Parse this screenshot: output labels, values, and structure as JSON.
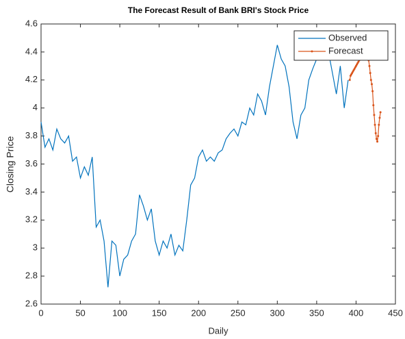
{
  "chart_data": {
    "type": "line",
    "title": "The Forecast Result of Bank BRI's Stock Price",
    "x_label": "Daily",
    "y_label": "Closing Price",
    "xlim": [
      0,
      450
    ],
    "xticks": [
      0,
      50,
      100,
      150,
      200,
      250,
      300,
      350,
      400,
      450
    ],
    "ylim": [
      2.6,
      4.6
    ],
    "yticks": [
      2.6,
      2.8,
      3,
      3.2,
      3.4,
      3.6,
      3.8,
      4,
      4.2,
      4.4,
      4.6
    ],
    "legend": "northeast",
    "series": [
      {
        "name": "Observed",
        "color": "#0072bd",
        "x": [
          0,
          5,
          10,
          15,
          20,
          25,
          30,
          35,
          40,
          45,
          50,
          55,
          60,
          65,
          70,
          75,
          80,
          85,
          90,
          95,
          100,
          105,
          110,
          115,
          120,
          125,
          130,
          135,
          140,
          145,
          150,
          155,
          160,
          165,
          170,
          175,
          180,
          185,
          190,
          195,
          200,
          205,
          210,
          215,
          220,
          225,
          230,
          235,
          240,
          245,
          250,
          255,
          260,
          265,
          270,
          275,
          280,
          285,
          290,
          295,
          300,
          305,
          310,
          315,
          320,
          325,
          330,
          335,
          340,
          345,
          350,
          355,
          360,
          365,
          370,
          375,
          380,
          385,
          390
        ],
        "values": [
          3.9,
          3.72,
          3.78,
          3.7,
          3.85,
          3.78,
          3.75,
          3.8,
          3.62,
          3.65,
          3.5,
          3.58,
          3.52,
          3.65,
          3.15,
          3.2,
          3.05,
          2.72,
          3.05,
          3.02,
          2.8,
          2.92,
          2.95,
          3.05,
          3.1,
          3.38,
          3.3,
          3.2,
          3.28,
          3.05,
          2.95,
          3.05,
          3.0,
          3.1,
          2.95,
          3.02,
          2.98,
          3.2,
          3.45,
          3.5,
          3.65,
          3.7,
          3.62,
          3.65,
          3.62,
          3.68,
          3.7,
          3.78,
          3.82,
          3.85,
          3.8,
          3.9,
          3.88,
          4.0,
          3.95,
          4.1,
          4.05,
          3.95,
          4.15,
          4.3,
          4.45,
          4.35,
          4.3,
          4.15,
          3.9,
          3.78,
          3.95,
          4.0,
          4.2,
          4.28,
          4.35,
          4.45,
          4.5,
          4.4,
          4.25,
          4.1,
          4.3,
          4.0,
          4.2
        ]
      },
      {
        "name": "Forecast",
        "color": "#d95319",
        "marker": true,
        "x": [
          392,
          393,
          394,
          395,
          396,
          397,
          398,
          399,
          400,
          401,
          402,
          403,
          404,
          405,
          406,
          407,
          408,
          409,
          410,
          411,
          412,
          413,
          414,
          415,
          416,
          417,
          418,
          419,
          420,
          421,
          422,
          423,
          424,
          425,
          426,
          427,
          428,
          429,
          430,
          431
        ],
        "values": [
          4.2,
          4.23,
          4.24,
          4.25,
          4.26,
          4.27,
          4.28,
          4.29,
          4.3,
          4.31,
          4.32,
          4.33,
          4.34,
          4.35,
          4.36,
          4.37,
          4.38,
          4.39,
          4.4,
          4.41,
          4.41,
          4.4,
          4.39,
          4.38,
          4.34,
          4.3,
          4.25,
          4.2,
          4.17,
          4.12,
          4.02,
          3.95,
          3.88,
          3.82,
          3.78,
          3.76,
          3.8,
          3.88,
          3.93,
          3.97
        ]
      }
    ]
  }
}
